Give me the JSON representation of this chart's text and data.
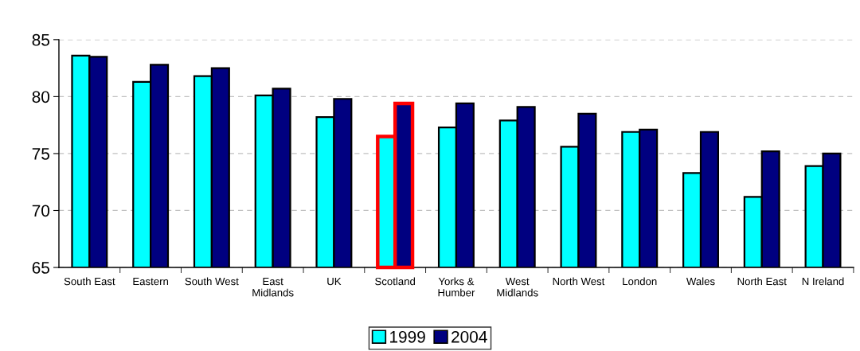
{
  "chart_data": {
    "type": "bar",
    "categories": [
      "South East",
      "Eastern",
      "South West",
      "East\nMidlands",
      "UK",
      "Scotland",
      "Yorks &\nHumber",
      "West\nMidlands",
      "North West",
      "London",
      "Wales",
      "North East",
      "N Ireland"
    ],
    "series": [
      {
        "name": "1999",
        "color": "#00ffff",
        "values": [
          83.6,
          81.3,
          81.8,
          80.1,
          78.2,
          76.5,
          77.3,
          77.9,
          75.6,
          76.9,
          73.3,
          71.2,
          73.9
        ]
      },
      {
        "name": "2004",
        "color": "#000080",
        "values": [
          83.5,
          82.8,
          82.5,
          80.7,
          79.8,
          79.4,
          79.4,
          79.1,
          78.5,
          77.1,
          76.9,
          75.2,
          75.0
        ]
      }
    ],
    "ylim": [
      65,
      85
    ],
    "yticks": [
      65,
      70,
      75,
      80,
      85
    ],
    "grid": "y",
    "legend": "bottom"
  }
}
